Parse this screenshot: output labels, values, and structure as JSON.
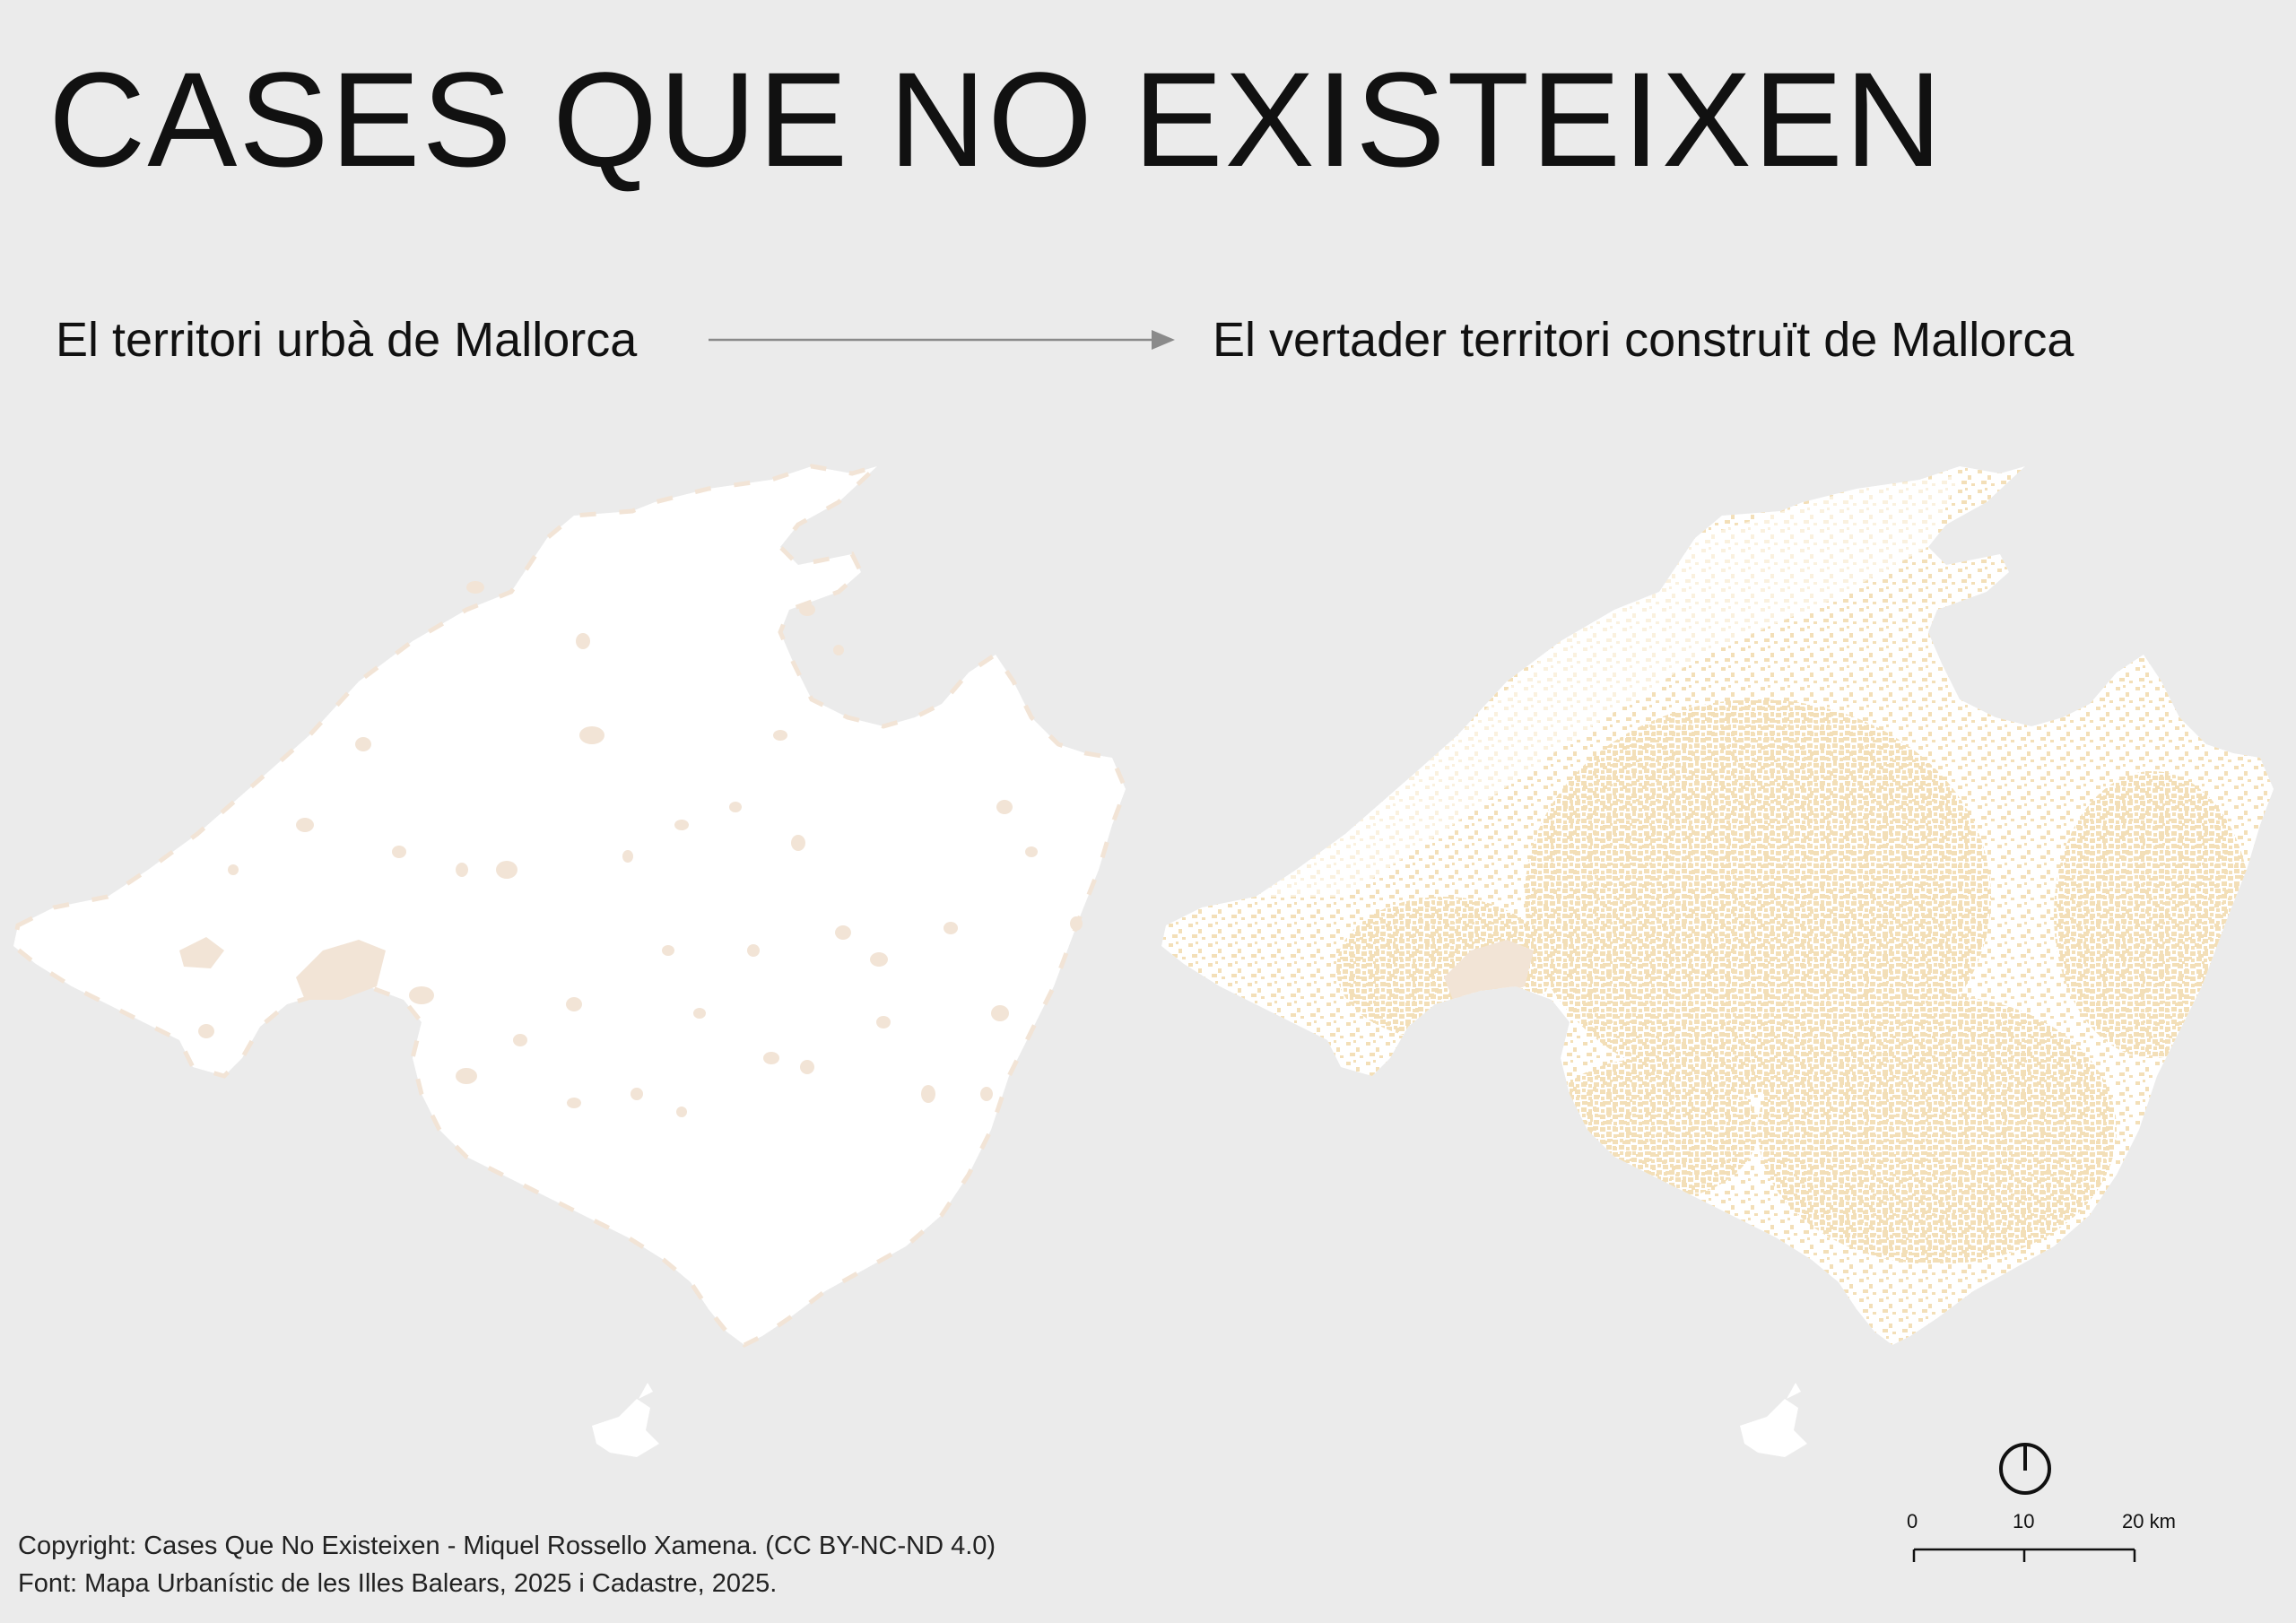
{
  "title": "CASES QUE NO EXISTEIXEN",
  "left_label": "El territori urbà de Mallorca",
  "right_label": "El vertader territori construït de Mallorca",
  "footer": {
    "copyright": "Copyright: Cases Que No Existeixen - Miquel Rossello Xamena. (CC BY-NC-ND 4.0)",
    "source": "Font: Mapa Urbanístic de les Illes Balears, 2025 i Cadastre, 2025."
  },
  "scale_bar": {
    "tick_0": "0",
    "tick_10": "10",
    "tick_20": "20 km"
  },
  "colors": {
    "background": "#ebebeb",
    "land": "#ffffff",
    "urban": "#f2e4d6",
    "built": "#f3dfb8",
    "arrow": "#8a8a8a"
  },
  "icons": {
    "north_arrow": "north-arrow-icon"
  }
}
